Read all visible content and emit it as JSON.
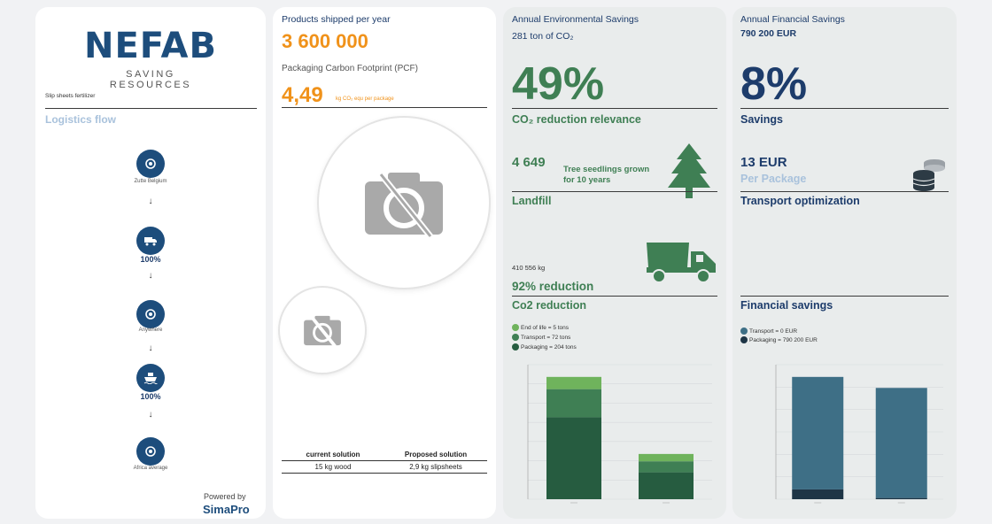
{
  "brand": {
    "logo": "NEFAB",
    "tagline": "SAVING RESOURCES"
  },
  "p1": {
    "product": "Slip sheets fertilizer",
    "flow_title": "Logistics flow",
    "steps": [
      {
        "label": "Zutte Belgium",
        "icon": "location-icon",
        "pct": ""
      },
      {
        "label": "",
        "icon": "truck-icon",
        "pct": "100%"
      },
      {
        "label": "Anywhere",
        "icon": "location-icon",
        "pct": ""
      },
      {
        "label": "",
        "icon": "ship-icon",
        "pct": "100%"
      },
      {
        "label": "Africa average",
        "icon": "location-icon",
        "pct": ""
      }
    ],
    "powered_by": "Powered by",
    "powered_brand": "SimaPro"
  },
  "p2": {
    "shipped_label": "Products shipped per year",
    "shipped_value": "3 600 000",
    "pcf_label": "Packaging Carbon Footprint (PCF)",
    "pcf_value": "4,49",
    "pcf_unit": "kg CO₂ equ per package",
    "table": {
      "headers": [
        "current solution",
        "Proposed solution"
      ],
      "values": [
        "15 kg wood",
        "2,9 kg slipsheets"
      ]
    }
  },
  "p3": {
    "title": "Annual Environmental Savings",
    "subtitle": "281 ton of CO₂",
    "big_pct": "49%",
    "big_label": "CO₂ reduction relevance",
    "seedlings_value": "4 649",
    "seedlings_label": "Tree seedlings grown for 10 years",
    "landfill_label": "Landfill",
    "landfill_kg": "410 556 kg",
    "reduction": "92% reduction",
    "co2_label": "Co2 reduction",
    "legend": [
      {
        "label": "End of life = 5 tons",
        "color": "#6fb35c"
      },
      {
        "label": "Transport = 72 tons",
        "color": "#3f7f54"
      },
      {
        "label": "Packaging = 204 tons",
        "color": "#265c40"
      }
    ],
    "colors": {
      "end_of_life": "#6fb35c",
      "transport": "#3f7f54",
      "packaging": "#265c40"
    }
  },
  "p4": {
    "title": "Annual Financial Savings",
    "subtitle": "790 200 EUR",
    "big_pct": "8%",
    "big_label": "Savings",
    "per_package_value": "13 EUR",
    "per_package_label": "Per Package",
    "transport_label": "Transport optimization",
    "financial_label": "Financial savings",
    "legend": [
      {
        "label": "Transport = 0 EUR",
        "color": "#3e6f86"
      },
      {
        "label": "Packaging = 790 200 EUR",
        "color": "#1e3546"
      }
    ]
  },
  "chart_data": [
    {
      "type": "bar",
      "stacked": true,
      "categories": [
        "current solution",
        "Proposed solution"
      ],
      "series": [
        {
          "name": "Packaging",
          "values": [
            67,
            22
          ],
          "color": "#265c40"
        },
        {
          "name": "Transport",
          "values": [
            23,
            9
          ],
          "color": "#3f7f54"
        },
        {
          "name": "End of life",
          "values": [
            10,
            6
          ],
          "color": "#6fb35c"
        }
      ],
      "ylim": [
        0,
        110
      ]
    },
    {
      "type": "bar",
      "stacked": true,
      "categories": [
        "current solution",
        "Proposed solution"
      ],
      "series": [
        {
          "name": "Packaging",
          "values": [
            8,
            1
          ],
          "color": "#1e3546"
        },
        {
          "name": "Transport",
          "values": [
            92,
            90
          ],
          "color": "#3e6f86"
        }
      ],
      "ylim": [
        0,
        110
      ]
    }
  ]
}
